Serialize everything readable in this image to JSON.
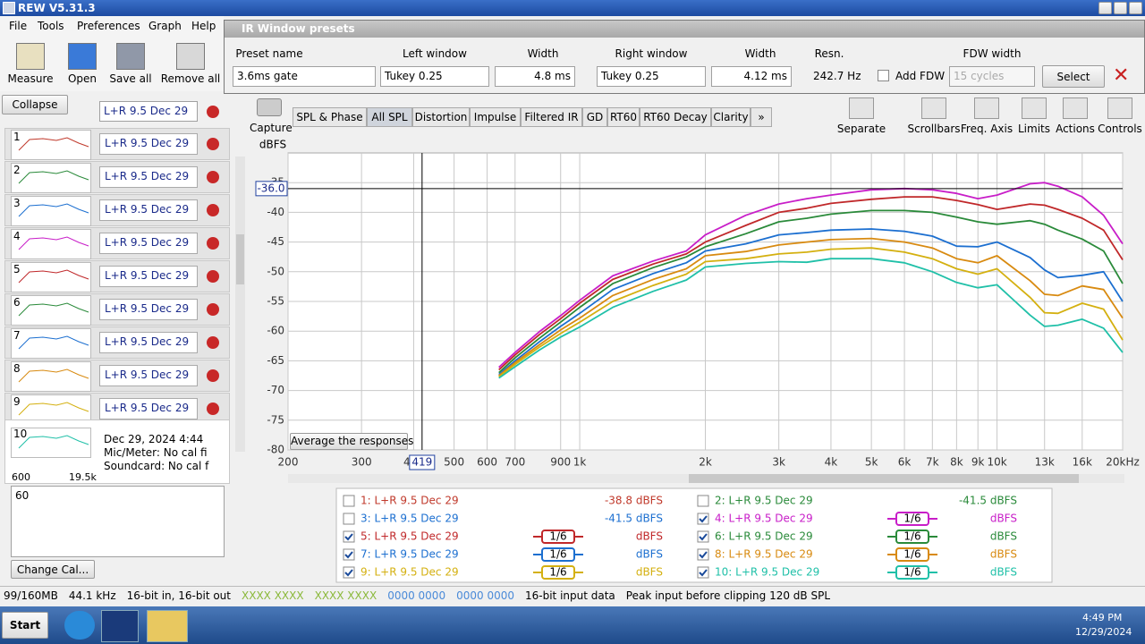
{
  "window": {
    "title": "REW V5.31.3"
  },
  "menu": [
    "File",
    "Tools",
    "Preferences",
    "Graph",
    "Help"
  ],
  "toolbar": [
    "Measure",
    "Open",
    "Save all",
    "Remove all"
  ],
  "ir_presets": {
    "title": "IR Window presets",
    "labels": [
      "Preset name",
      "Left window",
      "Width",
      "Right window",
      "Width",
      "Resn.",
      "FDW width"
    ],
    "preset_name": "3.6ms gate",
    "left_window": "Tukey 0.25",
    "left_width": "4.8 ms",
    "right_window": "Tukey 0.25",
    "right_width": "4.12 ms",
    "resn": "242.7 Hz",
    "add_fdw": "Add FDW",
    "fdw": "15 cycles",
    "select": "Select"
  },
  "sidebar": {
    "collapse": "Collapse",
    "top_item": "L+R 9.5 Dec 29",
    "items": [
      {
        "num": "1",
        "name": "L+R 9.5 Dec 29",
        "color": "#c0392b"
      },
      {
        "num": "2",
        "name": "L+R 9.5 Dec 29",
        "color": "#2a8a3a"
      },
      {
        "num": "3",
        "name": "L+R 9.5 Dec 29",
        "color": "#1c6fd0"
      },
      {
        "num": "4",
        "name": "L+R 9.5 Dec 29",
        "color": "#c81ec8"
      },
      {
        "num": "5",
        "name": "L+R 9.5 Dec 29",
        "color": "#c0282a"
      },
      {
        "num": "6",
        "name": "L+R 9.5 Dec 29",
        "color": "#2a8a3a"
      },
      {
        "num": "7",
        "name": "L+R 9.5 Dec 29",
        "color": "#1c6fd0"
      },
      {
        "num": "8",
        "name": "L+R 9.5 Dec 29",
        "color": "#d88a10"
      },
      {
        "num": "9",
        "name": "L+R 9.5 Dec 29",
        "color": "#d4b010"
      }
    ],
    "selected": {
      "num": "10",
      "range_low": "600",
      "range_high": "19.5k",
      "date": "Dec 29, 2024 4:44",
      "mic": "Mic/Meter: No cal fi",
      "soundcard": "Soundcard: No cal f",
      "color": "#20c0a8"
    },
    "notes": "60",
    "change_cal": "Change Cal..."
  },
  "capture": "Capture",
  "graph_tabs": [
    "SPL & Phase",
    "All SPL",
    "Distortion",
    "Impulse",
    "Filtered IR",
    "GD",
    "RT60",
    "RT60 Decay",
    "Clarity",
    "»"
  ],
  "graph_tools": [
    "Separate",
    "Scrollbars",
    "Freq. Axis",
    "Limits",
    "Actions",
    "Controls"
  ],
  "average_button": "Average the responses",
  "chart_data": {
    "type": "line",
    "y_label": "dBFS",
    "log_x": true,
    "grid": true,
    "xlim": [
      200,
      20000
    ],
    "ylim": [
      -80,
      -30
    ],
    "xticks": [
      200,
      300,
      400,
      500,
      600,
      700,
      900,
      {
        "value": 1000,
        "label": "1k"
      },
      {
        "value": 2000,
        "label": "2k"
      },
      {
        "value": 3000,
        "label": "3k"
      },
      {
        "value": 4000,
        "label": "4k"
      },
      {
        "value": 5000,
        "label": "5k"
      },
      {
        "value": 6000,
        "label": "6k"
      },
      {
        "value": 7000,
        "label": "7k"
      },
      {
        "value": 8000,
        "label": "8k"
      },
      {
        "value": 9000,
        "label": "9k"
      },
      {
        "value": 10000,
        "label": "10k"
      },
      {
        "value": 13000,
        "label": "13k"
      },
      {
        "value": 16000,
        "label": "16k"
      },
      {
        "value": 20000,
        "label": "20kHz"
      }
    ],
    "yticks": [
      -35,
      -40,
      -45,
      -50,
      -55,
      -60,
      -65,
      -70,
      -75,
      -80
    ],
    "cursor": {
      "x": {
        "value": 419,
        "label": "419"
      },
      "y": {
        "value": -36,
        "label": "-36.0"
      }
    },
    "x": [
      640,
      700,
      800,
      900,
      1000,
      1200,
      1500,
      1800,
      2000,
      2500,
      3000,
      3500,
      4000,
      5000,
      6000,
      7000,
      8000,
      9000,
      10000,
      12000,
      13000,
      14000,
      16000,
      18000,
      20000
    ],
    "hidden": [
      {
        "name": "1: L+R 9.5 Dec 29",
        "color": "#c0392b",
        "readout": "-38.8 dBFS"
      },
      {
        "name": "2: L+R 9.5 Dec 29",
        "color": "#2a8a3a",
        "readout": "-41.5 dBFS"
      },
      {
        "name": "3: L+R 9.5 Dec 29",
        "color": "#1c6fd0",
        "readout": "-41.5 dBFS"
      }
    ],
    "series": [
      {
        "name": "4: L+R 9.5 Dec 29",
        "color": "#c81ec8",
        "smoothing": "1/6",
        "readout": "dBFS",
        "values": [
          -66.1,
          -63.6,
          -60.1,
          -57.4,
          -54.8,
          -50.7,
          -48.2,
          -46.5,
          -43.8,
          -40.5,
          -38.6,
          -37.7,
          -37.1,
          -36.2,
          -36,
          -36.2,
          -36.8,
          -37.7,
          -37.1,
          -35.2,
          -35,
          -35.6,
          -37.4,
          -40.5,
          -45.3
        ]
      },
      {
        "name": "5: L+R 9.5 Dec 29",
        "color": "#c0282a",
        "smoothing": "1/6",
        "readout": "dBFS",
        "values": [
          -66.5,
          -64,
          -60.6,
          -57.9,
          -55.3,
          -51.3,
          -48.7,
          -47,
          -45,
          -42.2,
          -40,
          -39.3,
          -38.5,
          -37.8,
          -37.4,
          -37.4,
          -38,
          -38.7,
          -39.5,
          -38.6,
          -38.8,
          -39.5,
          -41,
          -43,
          -48
        ]
      },
      {
        "name": "6: L+R 9.5 Dec 29",
        "color": "#2a8a3a",
        "smoothing": "1/6",
        "readout": "dBFS",
        "values": [
          -67,
          -64.5,
          -61.2,
          -58.5,
          -56,
          -52,
          -49.3,
          -47.5,
          -45.8,
          -43.6,
          -41.6,
          -41,
          -40.3,
          -39.7,
          -39.7,
          -40,
          -40.8,
          -41.6,
          -42,
          -41.4,
          -42,
          -43,
          -44.5,
          -46.5,
          -52
        ]
      },
      {
        "name": "7: L+R 9.5 Dec 29",
        "color": "#1c6fd0",
        "smoothing": "1/6",
        "readout": "dBFS",
        "values": [
          -67.3,
          -65,
          -61.8,
          -59.2,
          -57,
          -53,
          -50.3,
          -48.5,
          -46.5,
          -45.3,
          -43.8,
          -43.4,
          -43,
          -42.8,
          -43.2,
          -44,
          -45.7,
          -45.8,
          -45,
          -47.6,
          -49.7,
          -51,
          -50.6,
          -50,
          -55
        ]
      },
      {
        "name": "8: L+R 9.5 Dec 29",
        "color": "#d88a10",
        "smoothing": "1/6",
        "readout": "dBFS",
        "values": [
          -67.5,
          -65.3,
          -62.3,
          -59.8,
          -57.8,
          -54,
          -51.3,
          -49.5,
          -47.3,
          -46.6,
          -45.5,
          -45,
          -44.6,
          -44.4,
          -45,
          -46,
          -47.8,
          -48.5,
          -47.3,
          -51.5,
          -53.8,
          -54,
          -52.4,
          -53,
          -57.8
        ]
      },
      {
        "name": "9: L+R 9.5 Dec 29",
        "color": "#d4b010",
        "smoothing": "1/6",
        "readout": "dBFS",
        "values": [
          -67.7,
          -65.6,
          -62.7,
          -60.4,
          -58.5,
          -55,
          -52.3,
          -50.4,
          -48.3,
          -47.8,
          -47,
          -46.7,
          -46.2,
          -46,
          -46.7,
          -47.8,
          -49.5,
          -50.4,
          -49.5,
          -54.3,
          -56.9,
          -57,
          -55.3,
          -56.3,
          -61.5
        ]
      },
      {
        "name": "10: L+R 9.5 Dec 29",
        "color": "#20c0a8",
        "smoothing": "1/6",
        "readout": "dBFS",
        "values": [
          -67.9,
          -66,
          -63.2,
          -61,
          -59.3,
          -56,
          -53.3,
          -51.4,
          -49.2,
          -48.6,
          -48.3,
          -48.4,
          -47.8,
          -47.8,
          -48.5,
          -50,
          -51.8,
          -52.7,
          -52.2,
          -57.3,
          -59.2,
          -59,
          -58,
          -59.5,
          -63.6
        ]
      }
    ]
  },
  "status": [
    "99/160MB",
    "44.1 kHz",
    "16-bit in, 16-bit out",
    "XXXX XXXX",
    "XXXX XXXX",
    "0000 0000",
    "0000 0000",
    "16-bit input data",
    "Peak input before clipping 120 dB SPL"
  ],
  "taskbar": {
    "start": "Start",
    "time": "4:49 PM",
    "date": "12/29/2024"
  }
}
